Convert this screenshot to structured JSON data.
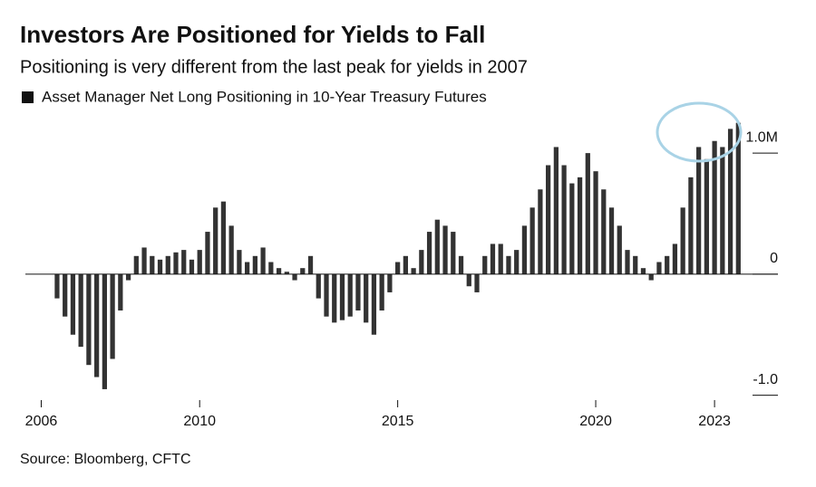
{
  "chart_data": {
    "type": "bar",
    "title": "Investors Are Positioned for Yields to Fall",
    "subtitle": "Positioning is very different from the last peak for yields in 2007",
    "source": "Source: Bloomberg, CFTC",
    "series": [
      {
        "name": "Asset Manager Net Long Positioning in 10-Year Treasury Futures",
        "color": "#333333",
        "values": [
          -0.2,
          -0.35,
          -0.5,
          -0.6,
          -0.75,
          -0.85,
          -0.95,
          -0.7,
          -0.3,
          -0.05,
          0.15,
          0.22,
          0.15,
          0.12,
          0.15,
          0.18,
          0.2,
          0.12,
          0.2,
          0.35,
          0.55,
          0.6,
          0.4,
          0.2,
          0.1,
          0.15,
          0.22,
          0.1,
          0.05,
          0.02,
          -0.05,
          0.05,
          0.15,
          -0.2,
          -0.35,
          -0.4,
          -0.38,
          -0.35,
          -0.3,
          -0.4,
          -0.5,
          -0.3,
          -0.15,
          0.1,
          0.15,
          0.05,
          0.2,
          0.35,
          0.45,
          0.4,
          0.35,
          0.15,
          -0.1,
          -0.15,
          0.15,
          0.25,
          0.25,
          0.15,
          0.2,
          0.4,
          0.55,
          0.7,
          0.9,
          1.05,
          0.9,
          0.75,
          0.8,
          1.0,
          0.85,
          0.7,
          0.55,
          0.4,
          0.2,
          0.15,
          0.05,
          -0.05,
          0.1,
          0.15,
          0.25,
          0.55,
          0.8,
          1.05,
          0.95,
          1.1,
          1.05,
          1.2,
          1.25
        ]
      }
    ],
    "x": [
      2006.4,
      2006.6,
      2006.8,
      2007.0,
      2007.2,
      2007.4,
      2007.6,
      2007.8,
      2008.0,
      2008.2,
      2008.4,
      2008.6,
      2008.8,
      2009.0,
      2009.2,
      2009.4,
      2009.6,
      2009.8,
      2010.0,
      2010.2,
      2010.4,
      2010.6,
      2010.8,
      2011.0,
      2011.2,
      2011.4,
      2011.6,
      2011.8,
      2012.0,
      2012.2,
      2012.4,
      2012.6,
      2012.8,
      2013.0,
      2013.2,
      2013.4,
      2013.6,
      2013.8,
      2014.0,
      2014.2,
      2014.4,
      2014.6,
      2014.8,
      2015.0,
      2015.2,
      2015.4,
      2015.6,
      2015.8,
      2016.0,
      2016.2,
      2016.4,
      2016.6,
      2016.8,
      2017.0,
      2017.2,
      2017.4,
      2017.6,
      2017.8,
      2018.0,
      2018.2,
      2018.4,
      2018.6,
      2018.8,
      2019.0,
      2019.2,
      2019.4,
      2019.6,
      2019.8,
      2020.0,
      2020.2,
      2020.4,
      2020.6,
      2020.8,
      2021.0,
      2021.2,
      2021.4,
      2021.6,
      2021.8,
      2022.0,
      2022.2,
      2022.4,
      2022.6,
      2022.8,
      2023.0,
      2023.2,
      2023.4,
      2023.6
    ],
    "xlim": [
      2005.6,
      2024.6
    ],
    "xticks": [
      2006,
      2010,
      2015,
      2020,
      2023
    ],
    "ylim": [
      -1.1,
      1.3
    ],
    "yticks": [
      {
        "value": 1,
        "label": "1.0M"
      },
      0,
      {
        "value": -1,
        "label": "-1.0"
      }
    ]
  }
}
